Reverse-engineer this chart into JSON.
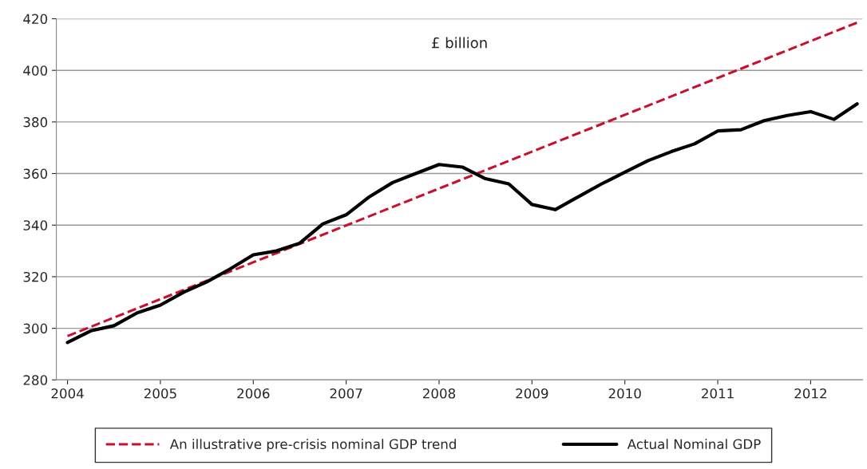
{
  "chart_data": {
    "type": "line",
    "annotations": [
      "£ billion"
    ],
    "xlim": [
      2003.88,
      2012.56
    ],
    "xticks": [
      2004,
      2005,
      2006,
      2007,
      2008,
      2009,
      2010,
      2011,
      2012
    ],
    "ylim": [
      280,
      420
    ],
    "yticks": [
      280,
      300,
      320,
      340,
      360,
      380,
      400,
      420
    ],
    "grid": "y",
    "legend": "bottom",
    "marker": "none",
    "series": [
      {
        "name": "An illustrative pre-crisis nominal GDP trend",
        "color": "#c8102e",
        "line_style": "dashed",
        "x": [
          2004.0,
          2012.5
        ],
        "values": [
          297,
          418.5
        ]
      },
      {
        "name": "Actual Nominal GDP",
        "color": "#000000",
        "line_style": "solid",
        "x": [
          2004.0,
          2004.25,
          2004.5,
          2004.75,
          2005.0,
          2005.25,
          2005.5,
          2005.75,
          2006.0,
          2006.25,
          2006.5,
          2006.75,
          2007.0,
          2007.25,
          2007.5,
          2007.75,
          2008.0,
          2008.25,
          2008.5,
          2008.75,
          2009.0,
          2009.25,
          2009.5,
          2009.75,
          2010.0,
          2010.25,
          2010.5,
          2010.75,
          2011.0,
          2011.25,
          2011.5,
          2011.75,
          2012.0,
          2012.25,
          2012.5
        ],
        "values": [
          294.5,
          299,
          301,
          306,
          309,
          314,
          318,
          323,
          328.5,
          330,
          333,
          340.5,
          344,
          351,
          356.5,
          360,
          363.5,
          362.5,
          358,
          356,
          348,
          346,
          351,
          356,
          360.5,
          365,
          368.5,
          371.5,
          376.5,
          377,
          380.5,
          382.5,
          384,
          381,
          387
        ]
      }
    ]
  }
}
